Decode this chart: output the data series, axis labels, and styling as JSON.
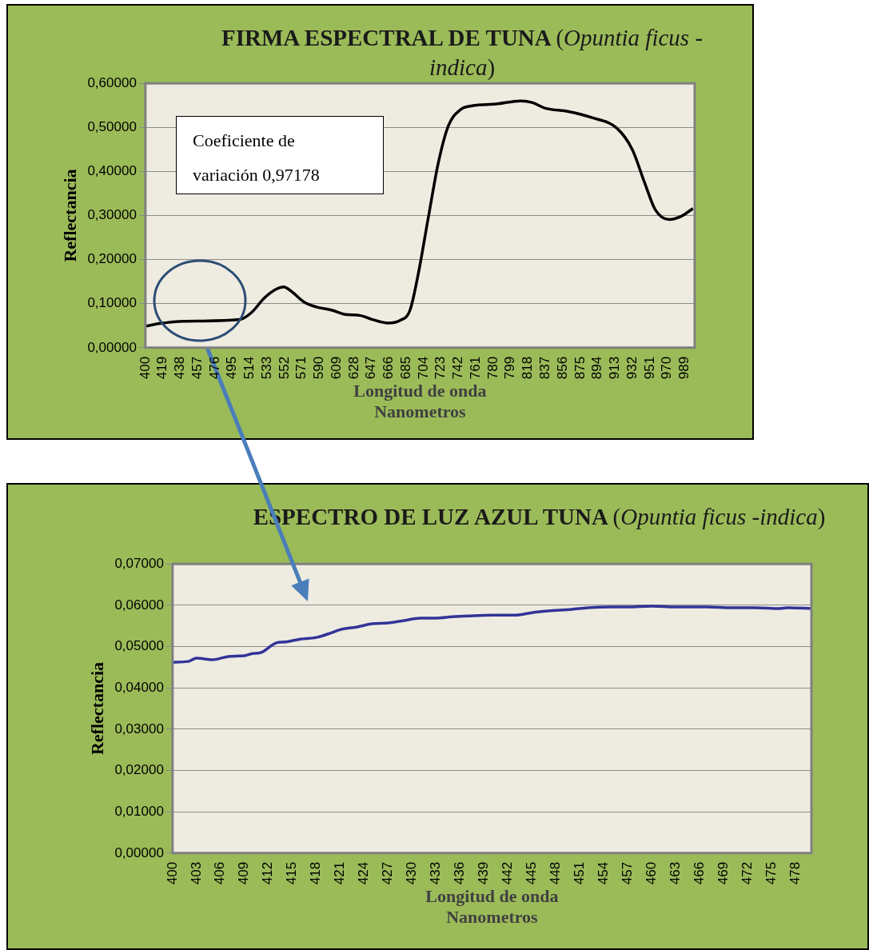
{
  "chart_data": [
    {
      "type": "line",
      "title": "FIRMA ESPECTRAL DE TUNA (Opuntia ficus -indica)",
      "xlabel": "Longitud de onda\nNanometros",
      "ylabel": "Reflectancia",
      "color": "#000000",
      "grid": "y",
      "x": [
        400,
        416,
        442,
        503,
        516,
        530,
        543,
        551,
        560,
        573,
        586,
        604,
        617,
        635,
        648,
        665,
        678,
        689,
        698,
        709,
        720,
        731,
        744,
        757,
        783,
        810,
        823,
        836,
        862,
        888,
        915,
        932,
        945,
        957,
        972,
        985,
        998
      ],
      "values": [
        0.049,
        0.055,
        0.06,
        0.064,
        0.08,
        0.113,
        0.133,
        0.138,
        0.127,
        0.104,
        0.093,
        0.085,
        0.076,
        0.073,
        0.064,
        0.056,
        0.062,
        0.085,
        0.167,
        0.295,
        0.42,
        0.504,
        0.54,
        0.549,
        0.553,
        0.56,
        0.556,
        0.544,
        0.536,
        0.522,
        0.498,
        0.449,
        0.376,
        0.313,
        0.291,
        0.298,
        0.316
      ],
      "xlim": [
        400,
        1000
      ],
      "xticks": [
        400,
        419,
        438,
        457,
        476,
        495,
        514,
        533,
        552,
        571,
        590,
        609,
        628,
        647,
        666,
        685,
        704,
        723,
        742,
        761,
        780,
        799,
        818,
        837,
        856,
        875,
        894,
        913,
        932,
        951,
        970,
        989
      ],
      "ylim": [
        0,
        0.6
      ],
      "yticks": [
        {
          "value": 0,
          "label": "0,00000"
        },
        {
          "value": 0.1,
          "label": "0,10000"
        },
        {
          "value": 0.2,
          "label": "0,20000"
        },
        {
          "value": 0.3,
          "label": "0,30000"
        },
        {
          "value": 0.4,
          "label": "0,40000"
        },
        {
          "value": 0.5,
          "label": "0,50000"
        },
        {
          "value": 0.6,
          "label": "0,60000"
        }
      ],
      "annotations": [
        "Coeficiente de variación 0,97178"
      ]
    },
    {
      "type": "line",
      "title": "ESPECTRO DE LUZ  AZUL TUNA (Opuntia ficus -indica)",
      "xlabel": "Longitud de onda\nNanometros",
      "ylabel": "Reflectancia",
      "color": "#333399",
      "grid": "y",
      "x": [
        400,
        402,
        403,
        405,
        407,
        409,
        410,
        411,
        413,
        414,
        416,
        418,
        420,
        421,
        423,
        425,
        427,
        429,
        431,
        433,
        435,
        437,
        440,
        443,
        445,
        447,
        450,
        452,
        455,
        457,
        460,
        463,
        467,
        470,
        473,
        476,
        477,
        480
      ],
      "values": [
        0.0462,
        0.0464,
        0.0472,
        0.0468,
        0.0476,
        0.0478,
        0.0483,
        0.0485,
        0.0509,
        0.0511,
        0.0518,
        0.0522,
        0.0534,
        0.0541,
        0.0547,
        0.0555,
        0.0557,
        0.0563,
        0.0569,
        0.0569,
        0.0572,
        0.0574,
        0.0576,
        0.0576,
        0.0582,
        0.0586,
        0.059,
        0.0594,
        0.0596,
        0.0596,
        0.0598,
        0.0596,
        0.0596,
        0.0594,
        0.0594,
        0.0592,
        0.0594,
        0.0592
      ],
      "xlim": [
        400,
        480
      ],
      "xticks": [
        400,
        403,
        406,
        409,
        412,
        415,
        418,
        421,
        424,
        427,
        430,
        433,
        436,
        439,
        442,
        445,
        448,
        451,
        454,
        457,
        460,
        463,
        466,
        469,
        472,
        475,
        478
      ],
      "ylim": [
        0,
        0.07
      ],
      "yticks": [
        {
          "value": 0,
          "label": "0,00000"
        },
        {
          "value": 0.01,
          "label": "0,01000"
        },
        {
          "value": 0.02,
          "label": "0,02000"
        },
        {
          "value": 0.03,
          "label": "0,03000"
        },
        {
          "value": 0.04,
          "label": "0,04000"
        },
        {
          "value": 0.05,
          "label": "0,05000"
        },
        {
          "value": 0.06,
          "label": "0,06000"
        },
        {
          "value": 0.07,
          "label": "0,07000"
        }
      ]
    }
  ]
}
